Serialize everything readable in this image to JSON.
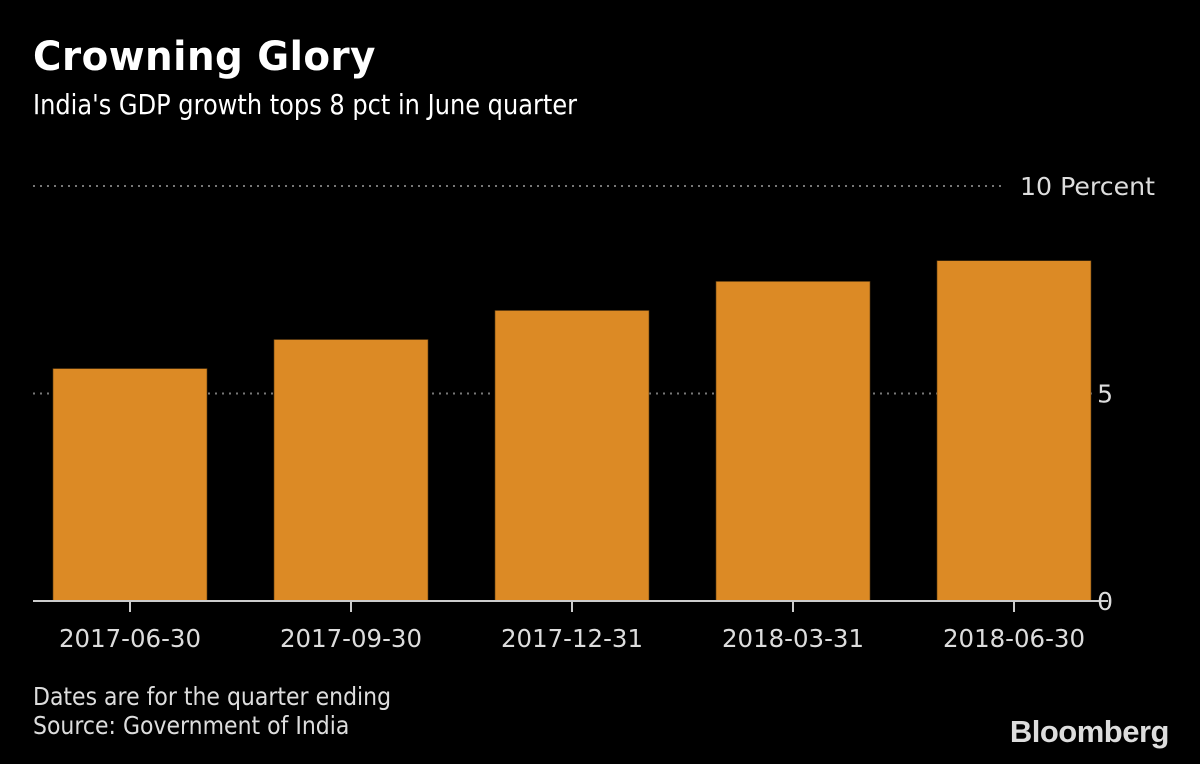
{
  "header": {
    "title": "Crowning Glory",
    "subtitle": "India's GDP growth tops 8 pct in June quarter"
  },
  "footer": {
    "note": "Dates are for the quarter ending",
    "source": "Source: Government of India",
    "brand": "Bloomberg"
  },
  "colors": {
    "background": "#000000",
    "bar": "#DC8A25",
    "gridline": "#777777",
    "axis": "#CCCCCC",
    "text": "#DDDDDD"
  },
  "chart_data": {
    "type": "bar",
    "title": "Crowning Glory",
    "subtitle": "India's GDP growth tops 8 pct in June quarter",
    "xlabel": "",
    "ylabel": "Percent",
    "categories": [
      "2017-06-30",
      "2017-09-30",
      "2017-12-31",
      "2018-03-31",
      "2018-06-30"
    ],
    "series": [
      {
        "name": "GDP growth",
        "values": [
          5.6,
          6.3,
          7.0,
          7.7,
          8.2
        ]
      }
    ],
    "ylim": [
      0,
      10
    ],
    "yticks": [
      0,
      5,
      10
    ],
    "ytick_labels": [
      "0",
      "5",
      "10 Percent"
    ],
    "grid": true,
    "legend": "none"
  }
}
